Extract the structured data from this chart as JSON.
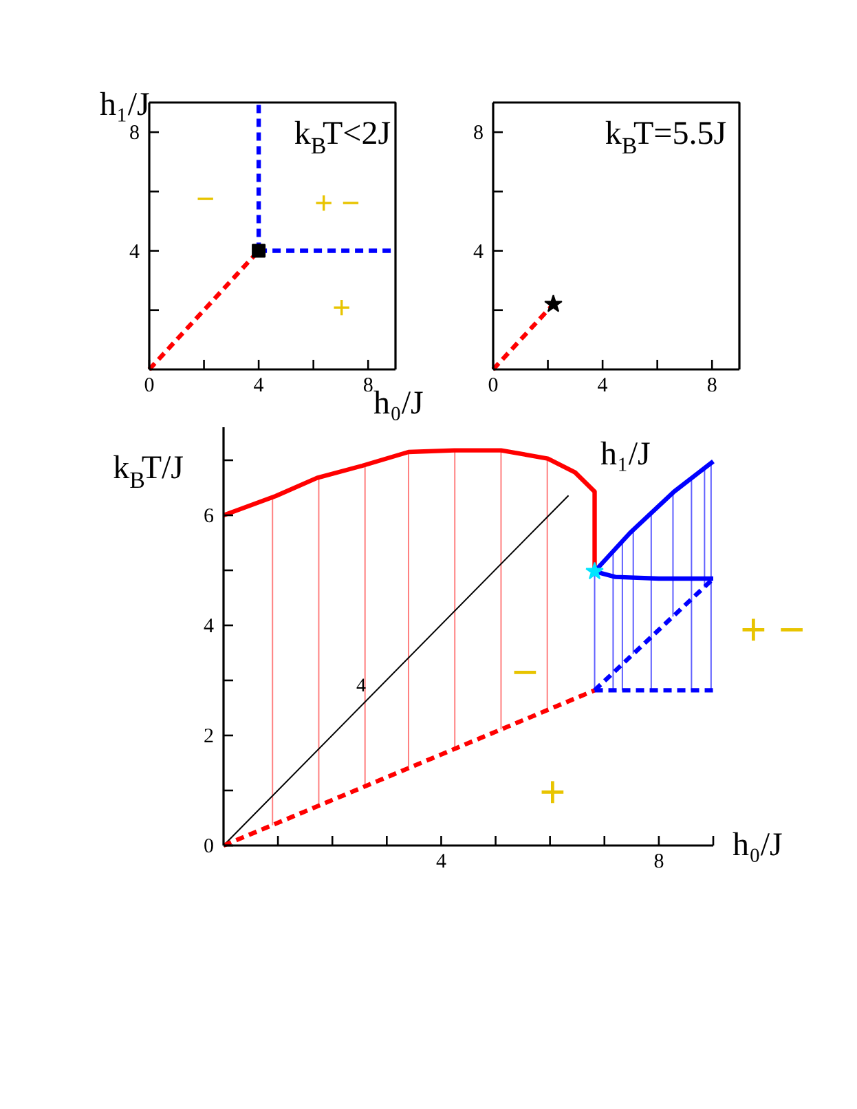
{
  "chart_data": [
    {
      "type": "line",
      "title": "k$_{B}$T<2J",
      "xlabel": "h₀/J",
      "ylabel": "h₁/J",
      "xlim": [
        0,
        9
      ],
      "ylim": [
        0,
        9
      ],
      "xticks": [
        0,
        {
          "value": 2,
          "label": null
        },
        4,
        {
          "value": 6,
          "label": null
        },
        8
      ],
      "yticks": [
        {
          "value": 2,
          "label": null
        },
        4,
        {
          "value": 6,
          "label": null
        },
        8
      ],
      "series": [
        {
          "color": "#ff0000",
          "line_style": "dashed",
          "x": [
            0,
            4
          ],
          "values": [
            0,
            4
          ]
        },
        {
          "color": "#0000ff",
          "line_style": "dashed",
          "x": [
            4,
            4
          ],
          "values": [
            4,
            9
          ]
        },
        {
          "color": "#0000ff",
          "line_style": "dashed",
          "x": [
            4,
            9
          ],
          "values": [
            4,
            4
          ]
        },
        {
          "type": "scatter",
          "marker": "square",
          "color": "#000000",
          "x": [
            4
          ],
          "values": [
            4
          ]
        }
      ],
      "annotations": [
        "−",
        "+ −",
        "+"
      ]
    },
    {
      "type": "line",
      "title": "k$_{B}$T=5.5J",
      "xlim": [
        0,
        9
      ],
      "ylim": [
        0,
        9
      ],
      "xticks": [
        0,
        {
          "value": 2,
          "label": null
        },
        4,
        {
          "value": 6,
          "label": null
        },
        8
      ],
      "yticks": [
        {
          "value": 2,
          "label": null
        },
        4,
        {
          "value": 6,
          "label": null
        },
        8
      ],
      "series": [
        {
          "color": "#ff0000",
          "line_style": "dashed",
          "x": [
            0,
            2.2
          ],
          "values": [
            0,
            2.2
          ]
        },
        {
          "type": "scatter",
          "marker": "star",
          "color": "#000000",
          "x": [
            2.2
          ],
          "values": [
            2.2
          ]
        }
      ]
    },
    {
      "type": "line",
      "xlabel": "h₀/J",
      "ylabel": "k$_{B}$T/J",
      "xlim": [
        0,
        9
      ],
      "ylim": [
        0,
        7.6
      ],
      "xticks": [
        {
          "value": 1,
          "label": null
        },
        {
          "value": 2,
          "label": null
        },
        {
          "value": 3,
          "label": null
        },
        4,
        {
          "value": 5,
          "label": null
        },
        {
          "value": 6,
          "label": null
        },
        {
          "value": 7,
          "label": null
        },
        8,
        {
          "value": 9,
          "label": null
        }
      ],
      "yticks": [
        0,
        {
          "value": 1,
          "label": null
        },
        2,
        {
          "value": 3,
          "label": null
        },
        4,
        {
          "value": 5,
          "label": null
        },
        6,
        {
          "value": 7,
          "label": null
        }
      ],
      "series": [
        {
          "color": "#ff8080",
          "line_style": "solid",
          "x": [
            0.9,
            0.9,
            null,
            1.75,
            1.75,
            null,
            2.6,
            2.6,
            null,
            3.4,
            3.4,
            null,
            4.25,
            4.25,
            null,
            5.1,
            5.1,
            null,
            5.95,
            5.95
          ],
          "values": [
            0.37,
            6.33,
            null,
            0.72,
            6.69,
            null,
            1.08,
            6.91,
            null,
            1.41,
            7.15,
            null,
            1.76,
            7.18,
            null,
            2.11,
            7.18,
            null,
            2.46,
            7.03
          ]
        },
        {
          "color": "#6060ff",
          "line_style": "solid",
          "x": [
            6.82,
            6.82,
            null,
            7.16,
            7.16,
            null,
            7.33,
            7.33,
            null,
            7.53,
            7.53,
            null,
            7.86,
            7.86,
            null,
            8.26,
            8.26,
            null,
            8.6,
            8.6,
            null,
            8.84,
            8.84,
            null,
            8.96,
            8.96
          ],
          "values": [
            2.82,
            4.98,
            null,
            2.82,
            5.35,
            null,
            2.82,
            5.53,
            null,
            3.48,
            5.74,
            null,
            2.82,
            6.05,
            null,
            4.16,
            6.41,
            null,
            2.82,
            6.68,
            null,
            4.69,
            6.86,
            null,
            2.82,
            6.95
          ]
        },
        {
          "color": "#000000",
          "line_style": "solid",
          "x": [
            0,
            6.34
          ],
          "values": [
            0,
            6.36
          ]
        },
        {
          "color": "#ff0000",
          "line_style": "solid",
          "x": [
            0,
            0.96,
            1.72,
            2.55,
            3.4,
            4.24,
            5.1,
            5.96,
            6.46,
            6.82,
            6.82
          ],
          "values": [
            6.0,
            6.35,
            6.68,
            6.9,
            7.15,
            7.18,
            7.18,
            7.03,
            6.78,
            6.43,
            4.98
          ]
        },
        {
          "color": "#ff0000",
          "line_style": "dashed",
          "x": [
            0,
            6.82
          ],
          "values": [
            0,
            2.82
          ]
        },
        {
          "color": "#0000ff",
          "line_style": "solid",
          "x": [
            6.82,
            7.47,
            8.28,
            9.0
          ],
          "values": [
            4.98,
            5.68,
            6.43,
            6.98
          ]
        },
        {
          "color": "#0000ff",
          "line_style": "solid",
          "x": [
            6.82,
            7.2,
            8.0,
            9.0
          ],
          "values": [
            4.98,
            4.88,
            4.85,
            4.85
          ]
        },
        {
          "color": "#0000ff",
          "line_style": "dashed",
          "x": [
            6.82,
            9.0
          ],
          "values": [
            2.82,
            4.85
          ]
        },
        {
          "color": "#0000ff",
          "line_style": "dashed",
          "x": [
            6.82,
            9.0
          ],
          "values": [
            2.82,
            2.82
          ]
        },
        {
          "type": "scatter",
          "marker": "star",
          "color": "#00e5ff",
          "x": [
            6.82
          ],
          "values": [
            4.98
          ]
        }
      ],
      "annotations": [
        "4",
        "h₁/J",
        "−",
        "+",
        "+ −"
      ]
    }
  ]
}
